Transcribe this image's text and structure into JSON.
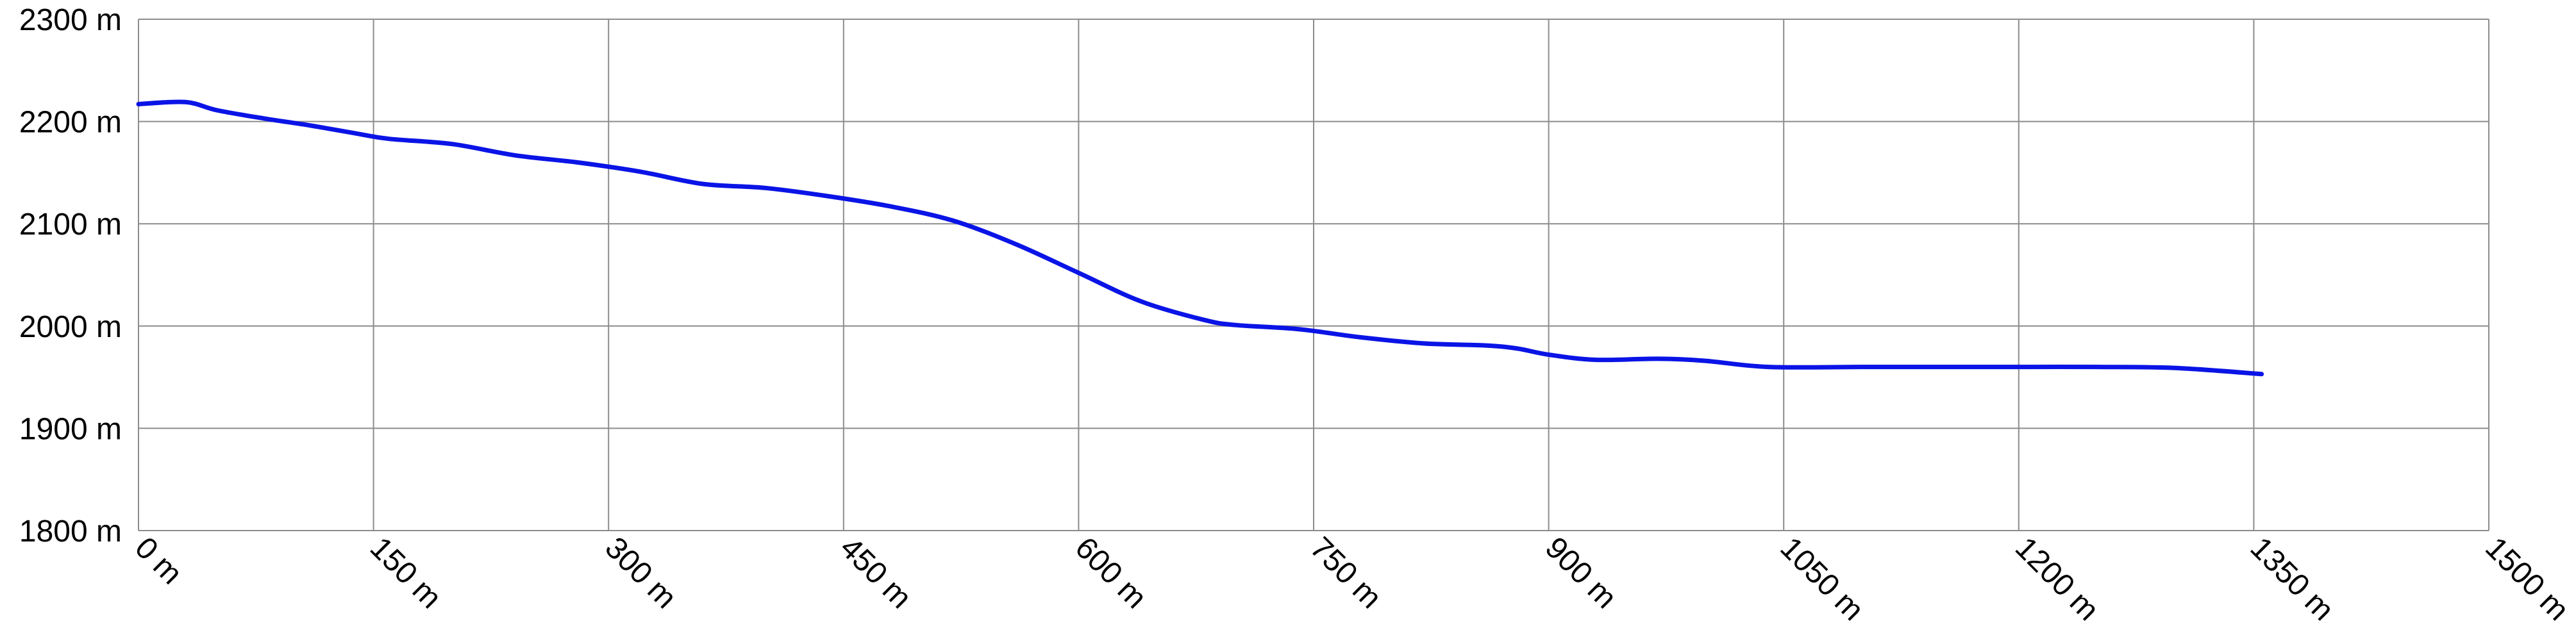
{
  "chart_data": {
    "type": "line",
    "title": "",
    "xlabel": "",
    "ylabel": "",
    "x_unit": "m",
    "y_unit": "m",
    "xlim": [
      0,
      1500
    ],
    "ylim": [
      1800,
      2300
    ],
    "x_ticks": [
      0,
      150,
      300,
      450,
      600,
      750,
      900,
      1050,
      1200,
      1350,
      1500
    ],
    "y_ticks": [
      1800,
      1900,
      2000,
      2100,
      2200,
      2300
    ],
    "x_tick_labels": [
      "0 m",
      "150 m",
      "300 m",
      "450 m",
      "600 m",
      "750 m",
      "900 m",
      "1050 m",
      "1200 m",
      "1350 m",
      "1500 m"
    ],
    "y_tick_labels": [
      "1800 m",
      "1900 m",
      "2000 m",
      "2100 m",
      "2200 m",
      "2300 m"
    ],
    "grid": true,
    "legend": "none",
    "line_color": "#0a14e6",
    "grid_color": "#8c8c8c",
    "series": [
      {
        "x": [
          0,
          30,
          50,
          80,
          110,
          140,
          160,
          200,
          240,
          280,
          320,
          360,
          400,
          440,
          480,
          520,
          560,
          600,
          640,
          680,
          700,
          740,
          780,
          820,
          860,
          880,
          900,
          930,
          970,
          1000,
          1040,
          1100,
          1150,
          1200,
          1250,
          1300,
          1355
        ],
        "y": [
          2217,
          2219,
          2211,
          2203,
          2196,
          2188,
          2183,
          2178,
          2167,
          2160,
          2151,
          2139,
          2135,
          2127,
          2117,
          2103,
          2080,
          2052,
          2024,
          2006,
          2001,
          1997,
          1989,
          1983,
          1981,
          1978,
          1972,
          1967,
          1968,
          1966,
          1960,
          1960,
          1960,
          1960,
          1960,
          1959,
          1953
        ]
      }
    ]
  }
}
